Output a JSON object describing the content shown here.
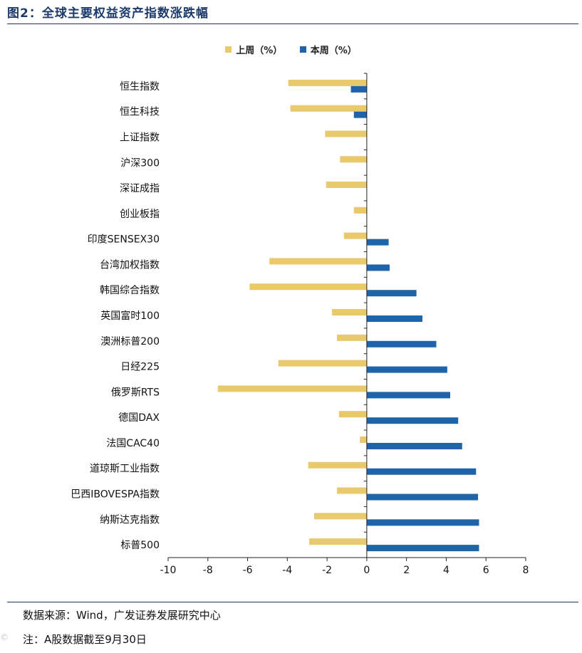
{
  "figure": {
    "title": "图2：全球主要权益资产指数涨跌幅",
    "source": "数据来源：Wind，广发证券发展研究中心",
    "note": "注：A股数据截至9月30日"
  },
  "colors": {
    "last_week": "#e8c96b",
    "this_week": "#1f64a8",
    "axis": "#444444",
    "title": "#1c3a6b"
  },
  "chart_data": {
    "type": "bar",
    "orientation": "horizontal",
    "title": "",
    "xlabel": "",
    "ylabel": "",
    "xlim": [
      -10,
      8
    ],
    "xticks": [
      -10,
      -8,
      -6,
      -4,
      -2,
      0,
      2,
      4,
      6,
      8
    ],
    "grid": false,
    "legend": "top-center",
    "categories": [
      "恒生指数",
      "恒生科技",
      "上证指数",
      "沪深300",
      "深证成指",
      "创业板指",
      "印度SENSEX30",
      "台湾加权指数",
      "韩国综合指数",
      "英国富时100",
      "澳洲标普200",
      "日经225",
      "俄罗斯RTS",
      "德国DAX",
      "法国CAC40",
      "道琼斯工业指数",
      "巴西IBOVESPA指数",
      "纳斯达克指数",
      "标普500"
    ],
    "series": [
      {
        "name": "上周（%）",
        "values": [
          -3.95,
          -3.85,
          -2.1,
          -1.35,
          -2.05,
          -0.65,
          -1.15,
          -4.9,
          -5.9,
          -1.75,
          -1.5,
          -4.45,
          -7.5,
          -1.4,
          -0.35,
          -2.95,
          -1.5,
          -2.65,
          -2.9
        ]
      },
      {
        "name": "本周（%）",
        "values": [
          -0.8,
          -0.65,
          0,
          0,
          0,
          0,
          1.1,
          1.15,
          2.5,
          2.8,
          3.5,
          4.05,
          4.2,
          4.6,
          4.8,
          5.5,
          5.6,
          5.65,
          5.65
        ]
      }
    ]
  },
  "watermark": "©"
}
